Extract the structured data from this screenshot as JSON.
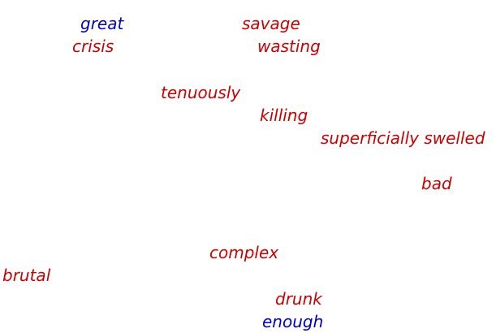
{
  "colors": {
    "positive": "#0000cc",
    "negative": "#cc0000"
  },
  "words": [
    {
      "text": "great",
      "sentiment": "positive"
    },
    {
      "text": "crisis",
      "sentiment": "negative"
    },
    {
      "text": "savage",
      "sentiment": "negative"
    },
    {
      "text": "wasting",
      "sentiment": "negative"
    },
    {
      "text": "tenuously",
      "sentiment": "negative"
    },
    {
      "text": "killing",
      "sentiment": "negative"
    },
    {
      "text": "superficially swelled",
      "sentiment": "negative"
    },
    {
      "text": "bad",
      "sentiment": "negative"
    },
    {
      "text": "complex",
      "sentiment": "negative"
    },
    {
      "text": "brutal",
      "sentiment": "negative"
    },
    {
      "text": "drunk",
      "sentiment": "negative"
    },
    {
      "text": "enough",
      "sentiment": "positive"
    }
  ]
}
